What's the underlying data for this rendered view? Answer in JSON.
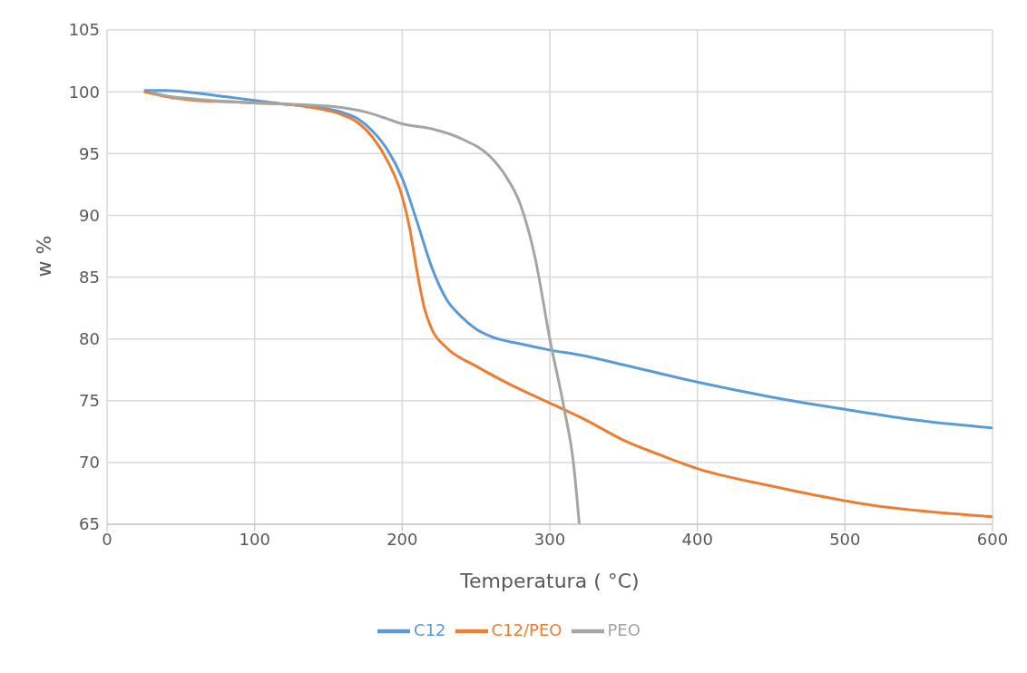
{
  "chart_data": {
    "type": "line",
    "xlabel": "Temperatura ( °C)",
    "ylabel": "w %",
    "xlim": [
      0,
      600
    ],
    "xticks": [
      0,
      100,
      200,
      300,
      400,
      500,
      600
    ],
    "ylim": [
      65,
      105
    ],
    "yticks": [
      65,
      70,
      75,
      80,
      85,
      90,
      95,
      100,
      105
    ],
    "grid": true,
    "legend": "bottom",
    "series": [
      {
        "name": "C12",
        "color": "#5b9bd5",
        "x": [
          25,
          40,
          60,
          80,
          100,
          120,
          140,
          160,
          170,
          180,
          190,
          200,
          210,
          220,
          230,
          240,
          250,
          260,
          280,
          300,
          320,
          350,
          400,
          450,
          500,
          550,
          600
        ],
        "values": [
          100.1,
          100.1,
          99.9,
          99.6,
          99.3,
          99.0,
          98.8,
          98.3,
          97.8,
          96.8,
          95.3,
          93.0,
          89.5,
          85.8,
          83.2,
          81.8,
          80.8,
          80.2,
          79.6,
          79.1,
          78.7,
          77.9,
          76.5,
          75.3,
          74.3,
          73.4,
          72.8
        ]
      },
      {
        "name": "C12/PEO",
        "color": "#ed7d31",
        "x": [
          25,
          40,
          60,
          80,
          100,
          120,
          140,
          160,
          170,
          180,
          190,
          200,
          205,
          210,
          215,
          220,
          230,
          250,
          275,
          300,
          325,
          350,
          375,
          400,
          450,
          500,
          520,
          550,
          600
        ],
        "values": [
          100.0,
          99.6,
          99.3,
          99.2,
          99.1,
          99.0,
          98.7,
          98.1,
          97.5,
          96.3,
          94.4,
          91.5,
          89.0,
          85.5,
          82.5,
          80.8,
          79.3,
          77.8,
          76.2,
          74.8,
          73.4,
          71.8,
          70.6,
          69.5,
          68.1,
          66.9,
          66.5,
          66.1,
          65.6
        ]
      },
      {
        "name": "PEO",
        "color": "#a5a5a5",
        "x": [
          30,
          35,
          60,
          100,
          140,
          160,
          180,
          190,
          200,
          220,
          240,
          260,
          270,
          280,
          290,
          300,
          310,
          316,
          320
        ],
        "values": [
          100.0,
          99.8,
          99.4,
          99.1,
          98.9,
          98.7,
          98.2,
          97.8,
          97.4,
          97.0,
          96.2,
          94.7,
          93.2,
          90.9,
          86.6,
          80.0,
          74.2,
          70.0,
          65.0
        ]
      }
    ]
  }
}
